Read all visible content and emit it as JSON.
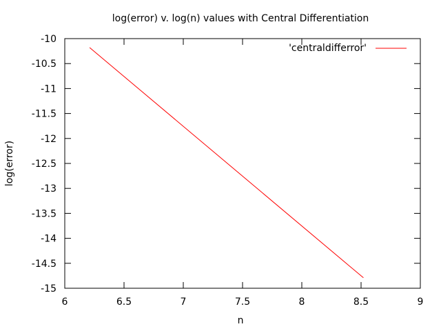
{
  "chart_data": {
    "type": "line",
    "title": "log(error) v. log(n) values with Central Differentiation",
    "xlabel": "n",
    "ylabel": "log(error)",
    "xlim": [
      6,
      9
    ],
    "ylim": [
      -15,
      -10
    ],
    "xticks": [
      "6",
      "6.5",
      "7",
      "7.5",
      "8",
      "8.5",
      "9"
    ],
    "yticks": [
      "-10",
      "-10.5",
      "-11",
      "-11.5",
      "-12",
      "-12.5",
      "-13",
      "-13.5",
      "-14",
      "-14.5",
      "-15"
    ],
    "grid": false,
    "legend_position": "top-right",
    "series": [
      {
        "name": "'centraldifferror'",
        "color": "#ff0000",
        "x": [
          6.21,
          8.52
        ],
        "y": [
          -10.18,
          -14.79
        ]
      }
    ]
  }
}
